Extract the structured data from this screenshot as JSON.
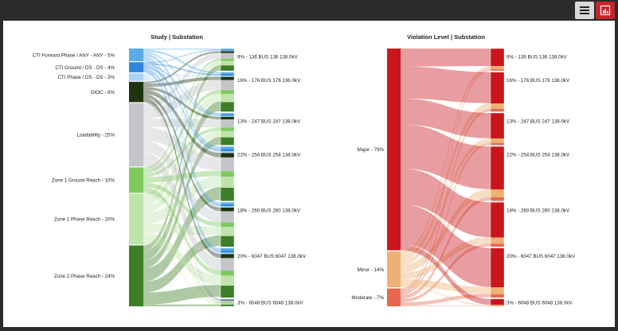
{
  "toolbar": {
    "menu_icon": "hamburger-menu-icon",
    "chart_icon": "chart-view-icon",
    "accent_color": "#c8232c"
  },
  "chart_data": [
    {
      "type": "sankey",
      "title": "Study | Substation",
      "sources": [
        {
          "label": "CTI Forward Phase / ANY - ANY - 5%",
          "value": 5,
          "color": "#5aabea"
        },
        {
          "label": "CTI Ground / DS - DS - 4%",
          "value": 4,
          "color": "#2f86dd"
        },
        {
          "label": "CTI Phase / DS - DS - 3%",
          "value": 3,
          "color": "#a9d3f4"
        },
        {
          "label": "GIOC - 8%",
          "value": 8,
          "color": "#1c3410"
        },
        {
          "label": "Loadability - 25%",
          "value": 25,
          "color": "#c4c5c8"
        },
        {
          "label": "Zone 1 Ground Reach - 10%",
          "value": 10,
          "color": "#7dc95d"
        },
        {
          "label": "Zone 1 Phase Reach - 20%",
          "value": 20,
          "color": "#bfe3aa"
        },
        {
          "label": "Zone 2 Phase Reach - 24%",
          "value": 24,
          "color": "#3d7f27"
        }
      ],
      "targets": [
        {
          "label": "9% - 136 BUS 136 138.0kV",
          "value": 9
        },
        {
          "label": "16% - 176 BUS 176 138.0kV",
          "value": 16
        },
        {
          "label": "13% - 247 BUS 247 138.0kV",
          "value": 13
        },
        {
          "label": "22% - 254 BUS 254 138.0kV",
          "value": 22
        },
        {
          "label": "18% - 260 BUS 260 138.0kV",
          "value": 18
        },
        {
          "label": "20% - 6047 BUS 6047 138.0kV",
          "value": 20
        },
        {
          "label": "3% - 6048 BUS 6048 138.0kV",
          "value": 3
        }
      ]
    },
    {
      "type": "sankey",
      "title": "Violation Level | Substation",
      "sources": [
        {
          "label": "Major - 79%",
          "value": 79,
          "color": "#c9161c"
        },
        {
          "label": "Minor - 14%",
          "value": 14,
          "color": "#ecb173"
        },
        {
          "label": "Moderate - 7%",
          "value": 7,
          "color": "#e8684f"
        }
      ],
      "targets": [
        {
          "label": "9% - 136 BUS 136 138.0kV",
          "value": 9
        },
        {
          "label": "16% - 176 BUS 176 138.0kV",
          "value": 16
        },
        {
          "label": "13% - 247 BUS 247 138.0kV",
          "value": 13
        },
        {
          "label": "22% - 254 BUS 254 138.0kV",
          "value": 22
        },
        {
          "label": "18% - 260 BUS 260 138.0kV",
          "value": 18
        },
        {
          "label": "20% - 6047 BUS 6047 138.0kV",
          "value": 20
        },
        {
          "label": "3% - 6048 BUS 6048 138.0kV",
          "value": 3
        }
      ]
    }
  ]
}
